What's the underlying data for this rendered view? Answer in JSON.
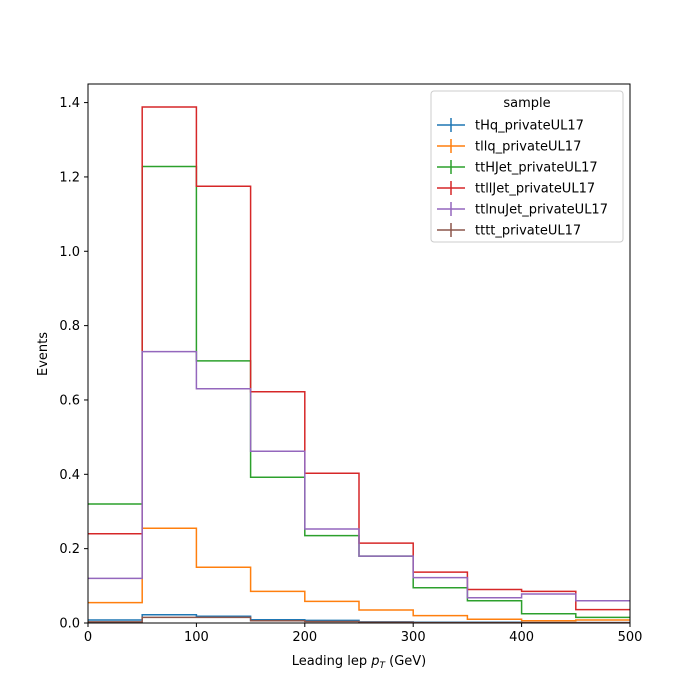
{
  "chart_data": {
    "type": "histogram-step",
    "xlabel_prefix": "Leading lep ",
    "xlabel_var": "p",
    "xlabel_sub": "T",
    "xlabel_suffix": " (GeV)",
    "ylabel": "Events",
    "xlim": [
      0,
      500
    ],
    "ylim": [
      0,
      1.45
    ],
    "xticks": [
      0,
      100,
      200,
      300,
      400,
      500
    ],
    "yticks": [
      0.0,
      0.2,
      0.4,
      0.6,
      0.8,
      1.0,
      1.2,
      1.4
    ],
    "bin_edges": [
      0,
      50,
      100,
      150,
      200,
      250,
      300,
      350,
      400,
      450,
      500
    ],
    "legend_title": "sample",
    "legend_position": "top-right",
    "grid": false,
    "series": [
      {
        "name": "tHq_privateUL17",
        "color": "#1f77b4",
        "values": [
          0.008,
          0.022,
          0.018,
          0.009,
          0.007,
          0.003,
          0.002,
          0.002,
          0.001,
          0.001
        ]
      },
      {
        "name": "tllq_privateUL17",
        "color": "#ff7f0e",
        "values": [
          0.055,
          0.255,
          0.15,
          0.085,
          0.058,
          0.035,
          0.02,
          0.01,
          0.006,
          0.008
        ]
      },
      {
        "name": "ttHJet_privateUL17",
        "color": "#2ca02c",
        "values": [
          0.32,
          1.228,
          0.705,
          0.392,
          0.235,
          0.18,
          0.095,
          0.06,
          0.025,
          0.015
        ]
      },
      {
        "name": "ttllJet_privateUL17",
        "color": "#d62728",
        "values": [
          0.24,
          1.388,
          1.175,
          0.622,
          0.403,
          0.215,
          0.137,
          0.09,
          0.085,
          0.036
        ]
      },
      {
        "name": "ttlnuJet_privateUL17",
        "color": "#9467bd",
        "values": [
          0.12,
          0.73,
          0.63,
          0.462,
          0.253,
          0.18,
          0.122,
          0.068,
          0.078,
          0.06
        ]
      },
      {
        "name": "tttt_privateUL17",
        "color": "#8c564b",
        "values": [
          0.003,
          0.015,
          0.015,
          0.006,
          0.004,
          0.002,
          0.001,
          0.001,
          0.001,
          0.001
        ]
      }
    ]
  }
}
